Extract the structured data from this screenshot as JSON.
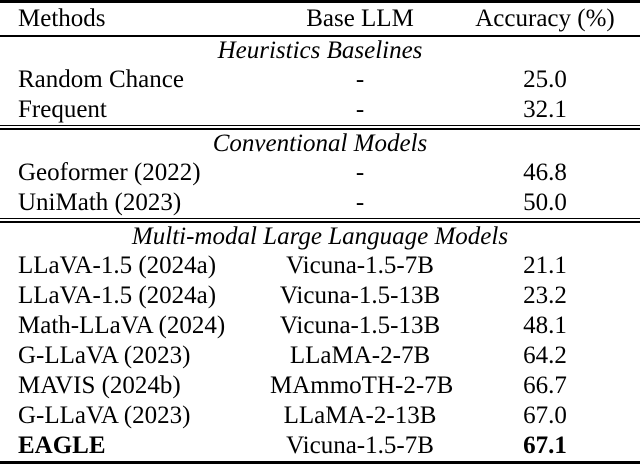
{
  "table": {
    "colors": {
      "text": "#000000",
      "background": "#ffffff",
      "rule": "#000000"
    },
    "columns": [
      "Methods",
      "Base LLM",
      "Accuracy (%)"
    ],
    "sections": [
      {
        "title": "Heuristics Baselines",
        "rows": [
          {
            "method": "Random Chance",
            "base_llm": "-",
            "accuracy": "25.0",
            "bold": false
          },
          {
            "method": "Frequent",
            "base_llm": "-",
            "accuracy": "32.1",
            "bold": false
          }
        ]
      },
      {
        "title": "Conventional Models",
        "rows": [
          {
            "method": "Geoformer (2022)",
            "base_llm": "-",
            "accuracy": "46.8",
            "bold": false
          },
          {
            "method": "UniMath (2023)",
            "base_llm": "-",
            "accuracy": "50.0",
            "bold": false
          }
        ]
      },
      {
        "title": "Multi-modal Large Language Models",
        "rows": [
          {
            "method": "LLaVA-1.5 (2024a)",
            "base_llm": "Vicuna-1.5-7B",
            "accuracy": "21.1",
            "bold": false
          },
          {
            "method": "LLaVA-1.5 (2024a)",
            "base_llm": "Vicuna-1.5-13B",
            "accuracy": "23.2",
            "bold": false
          },
          {
            "method": "Math-LLaVA (2024)",
            "base_llm": "Vicuna-1.5-13B",
            "accuracy": "48.1",
            "bold": false
          },
          {
            "method": "G-LLaVA (2023)",
            "base_llm": "LLaMA-2-7B",
            "accuracy": "64.2",
            "bold": false
          },
          {
            "method": "MAVIS (2024b)",
            "base_llm": "MAmmoTH-2-7B",
            "accuracy": "66.7",
            "bold": false
          },
          {
            "method": "G-LLaVA (2023)",
            "base_llm": "LLaMA-2-13B",
            "accuracy": "67.0",
            "bold": false
          },
          {
            "method": "EAGLE",
            "base_llm": "Vicuna-1.5-7B",
            "accuracy": "67.1",
            "bold": true
          }
        ]
      }
    ]
  }
}
